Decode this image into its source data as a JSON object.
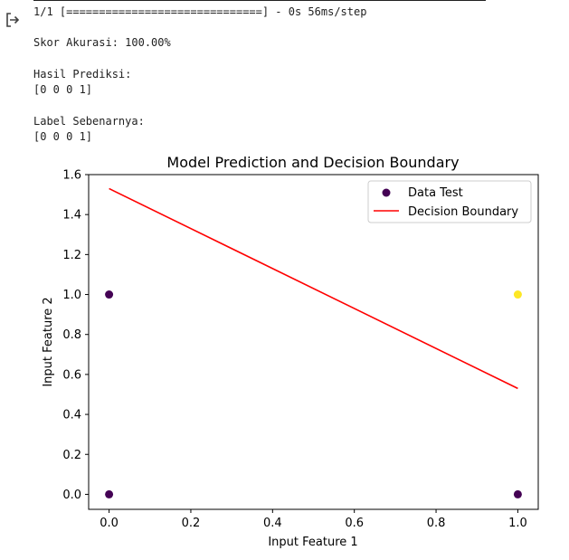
{
  "console": {
    "progress": "1/1 [==============================] - 0s 56ms/step",
    "accuracy": "Skor Akurasi: 100.00%",
    "pred_title": "Hasil Prediksi:",
    "pred_values": "[0 0 0 1]",
    "label_title": "Label Sebenarnya:",
    "label_values": "[0 0 0 1]"
  },
  "chart_data": {
    "type": "scatter",
    "title": "Model Prediction and Decision Boundary",
    "xlabel": "Input Feature 1",
    "ylabel": "Input Feature 2",
    "xlim": [
      -0.05,
      1.05
    ],
    "ylim": [
      -0.075,
      1.6
    ],
    "xticks": [
      "0.0",
      "0.2",
      "0.4",
      "0.6",
      "0.8",
      "1.0"
    ],
    "xtick_values": [
      0.0,
      0.2,
      0.4,
      0.6,
      0.8,
      1.0
    ],
    "yticks": [
      "0.0",
      "0.2",
      "0.4",
      "0.6",
      "0.8",
      "1.0",
      "1.2",
      "1.4",
      "1.6"
    ],
    "ytick_values": [
      0.0,
      0.2,
      0.4,
      0.6,
      0.8,
      1.0,
      1.2,
      1.4,
      1.6
    ],
    "legend_position": "top-right",
    "series": [
      {
        "name": "Data Test",
        "kind": "scatter",
        "points": [
          {
            "x": 0,
            "y": 0,
            "label": 0
          },
          {
            "x": 0,
            "y": 1,
            "label": 0
          },
          {
            "x": 1,
            "y": 0,
            "label": 0
          },
          {
            "x": 1,
            "y": 1,
            "label": 1
          }
        ],
        "colors": {
          "0": "#440154",
          "1": "#fde725"
        }
      },
      {
        "name": "Decision Boundary",
        "kind": "line",
        "x": [
          0,
          1
        ],
        "y": [
          1.53,
          0.53
        ],
        "color": "#ff0000"
      }
    ]
  }
}
